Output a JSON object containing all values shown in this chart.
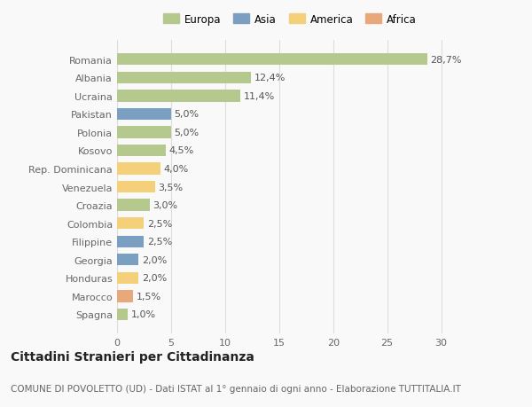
{
  "categories": [
    "Romania",
    "Albania",
    "Ucraina",
    "Pakistan",
    "Polonia",
    "Kosovo",
    "Rep. Dominicana",
    "Venezuela",
    "Croazia",
    "Colombia",
    "Filippine",
    "Georgia",
    "Honduras",
    "Marocco",
    "Spagna"
  ],
  "values": [
    28.7,
    12.4,
    11.4,
    5.0,
    5.0,
    4.5,
    4.0,
    3.5,
    3.0,
    2.5,
    2.5,
    2.0,
    2.0,
    1.5,
    1.0
  ],
  "labels": [
    "28,7%",
    "12,4%",
    "11,4%",
    "5,0%",
    "5,0%",
    "4,5%",
    "4,0%",
    "3,5%",
    "3,0%",
    "2,5%",
    "2,5%",
    "2,0%",
    "2,0%",
    "1,5%",
    "1,0%"
  ],
  "continents": [
    "Europa",
    "Europa",
    "Europa",
    "Asia",
    "Europa",
    "Europa",
    "America",
    "America",
    "Europa",
    "America",
    "Asia",
    "Asia",
    "America",
    "Africa",
    "Europa"
  ],
  "colors": {
    "Europa": "#b5c98e",
    "Asia": "#7b9fc0",
    "America": "#f5d07a",
    "Africa": "#e8a87c"
  },
  "xlim": [
    0,
    32
  ],
  "xticks": [
    0,
    5,
    10,
    15,
    20,
    25,
    30
  ],
  "title": "Cittadini Stranieri per Cittadinanza",
  "subtitle": "COMUNE DI POVOLETTO (UD) - Dati ISTAT al 1° gennaio di ogni anno - Elaborazione TUTTITALIA.IT",
  "background_color": "#f9f9f9",
  "grid_color": "#dddddd",
  "bar_height": 0.65,
  "label_fontsize": 8,
  "ytick_fontsize": 8,
  "xtick_fontsize": 8,
  "title_fontsize": 10,
  "subtitle_fontsize": 7.5,
  "legend_fontsize": 8.5
}
